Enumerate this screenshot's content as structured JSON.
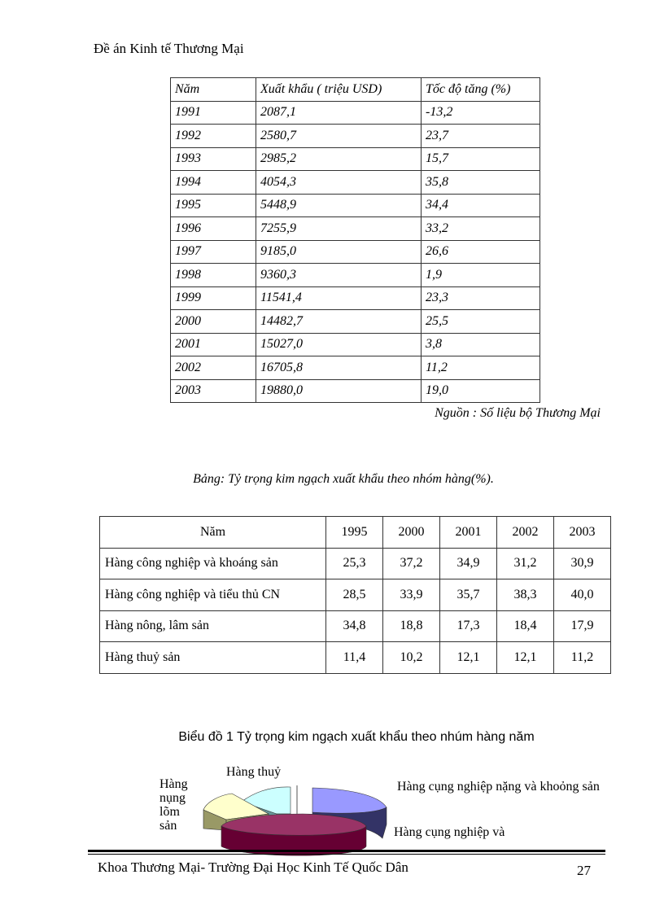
{
  "header": {
    "title": "Đề án Kinh tế Thương Mại"
  },
  "table1": {
    "headers": [
      "Năm",
      "Xuất khẩu ( triệu USD)",
      "Tốc độ tăng (%)"
    ],
    "rows": [
      [
        "1991",
        "2087,1",
        "-13,2"
      ],
      [
        "1992",
        "2580,7",
        "23,7"
      ],
      [
        "1993",
        "2985,2",
        "15,7"
      ],
      [
        "1994",
        "4054,3",
        "35,8"
      ],
      [
        "1995",
        "5448,9",
        "34,4"
      ],
      [
        "1996",
        "7255,9",
        "33,2"
      ],
      [
        "1997",
        "9185,0",
        "26,6"
      ],
      [
        "1998",
        "9360,3",
        "1,9"
      ],
      [
        "1999",
        "11541,4",
        "23,3"
      ],
      [
        "2000",
        "14482,7",
        "25,5"
      ],
      [
        "2001",
        "15027,0",
        "3,8"
      ],
      [
        "2002",
        "16705,8",
        "11,2"
      ],
      [
        "2003",
        "19880,0",
        "19,0"
      ]
    ],
    "source": "Nguồn : Số liệu bộ Thương Mại"
  },
  "table2": {
    "caption": "Bảng: Tỷ trọng kim ngạch xuất khẩu theo nhóm hàng(%).",
    "headers": [
      "Năm",
      "1995",
      "2000",
      "2001",
      "2002",
      "2003"
    ],
    "rows": [
      [
        "Hàng công nghiệp và khoáng sản",
        "25,3",
        "37,2",
        "34,9",
        "31,2",
        "30,9"
      ],
      [
        "Hàng công nghiệp và tiểu thủ CN",
        "28,5",
        "33,9",
        "35,7",
        "38,3",
        "40,0"
      ],
      [
        "Hàng nông, lâm sản",
        "34,8",
        "18,8",
        "17,3",
        "18,4",
        "17,9"
      ],
      [
        "Hàng thuỷ sản",
        "11,4",
        "10,2",
        "12,1",
        "12,1",
        "11,2"
      ]
    ]
  },
  "chart_data": {
    "type": "pie",
    "title": "Biểu đồ 1 Tỷ trọng kim ngạch xuất khẩu theo nhúm hàng năm",
    "slices": [
      {
        "label": "Hàng cụng nghiệp nặng và khoỏng sản",
        "color": "#9999ff"
      },
      {
        "label": "Hàng cụng nghiệp và",
        "color": "#993366"
      },
      {
        "label": "Hàng nụng lõm sản",
        "color": "#ffffcc"
      },
      {
        "label": "Hàng thuỷ",
        "color": "#ccffff"
      }
    ]
  },
  "footer": {
    "text": "Khoa Thương Mại-  Trường Đại Học Kinh Tế Quốc Dân",
    "page_number": "27"
  }
}
